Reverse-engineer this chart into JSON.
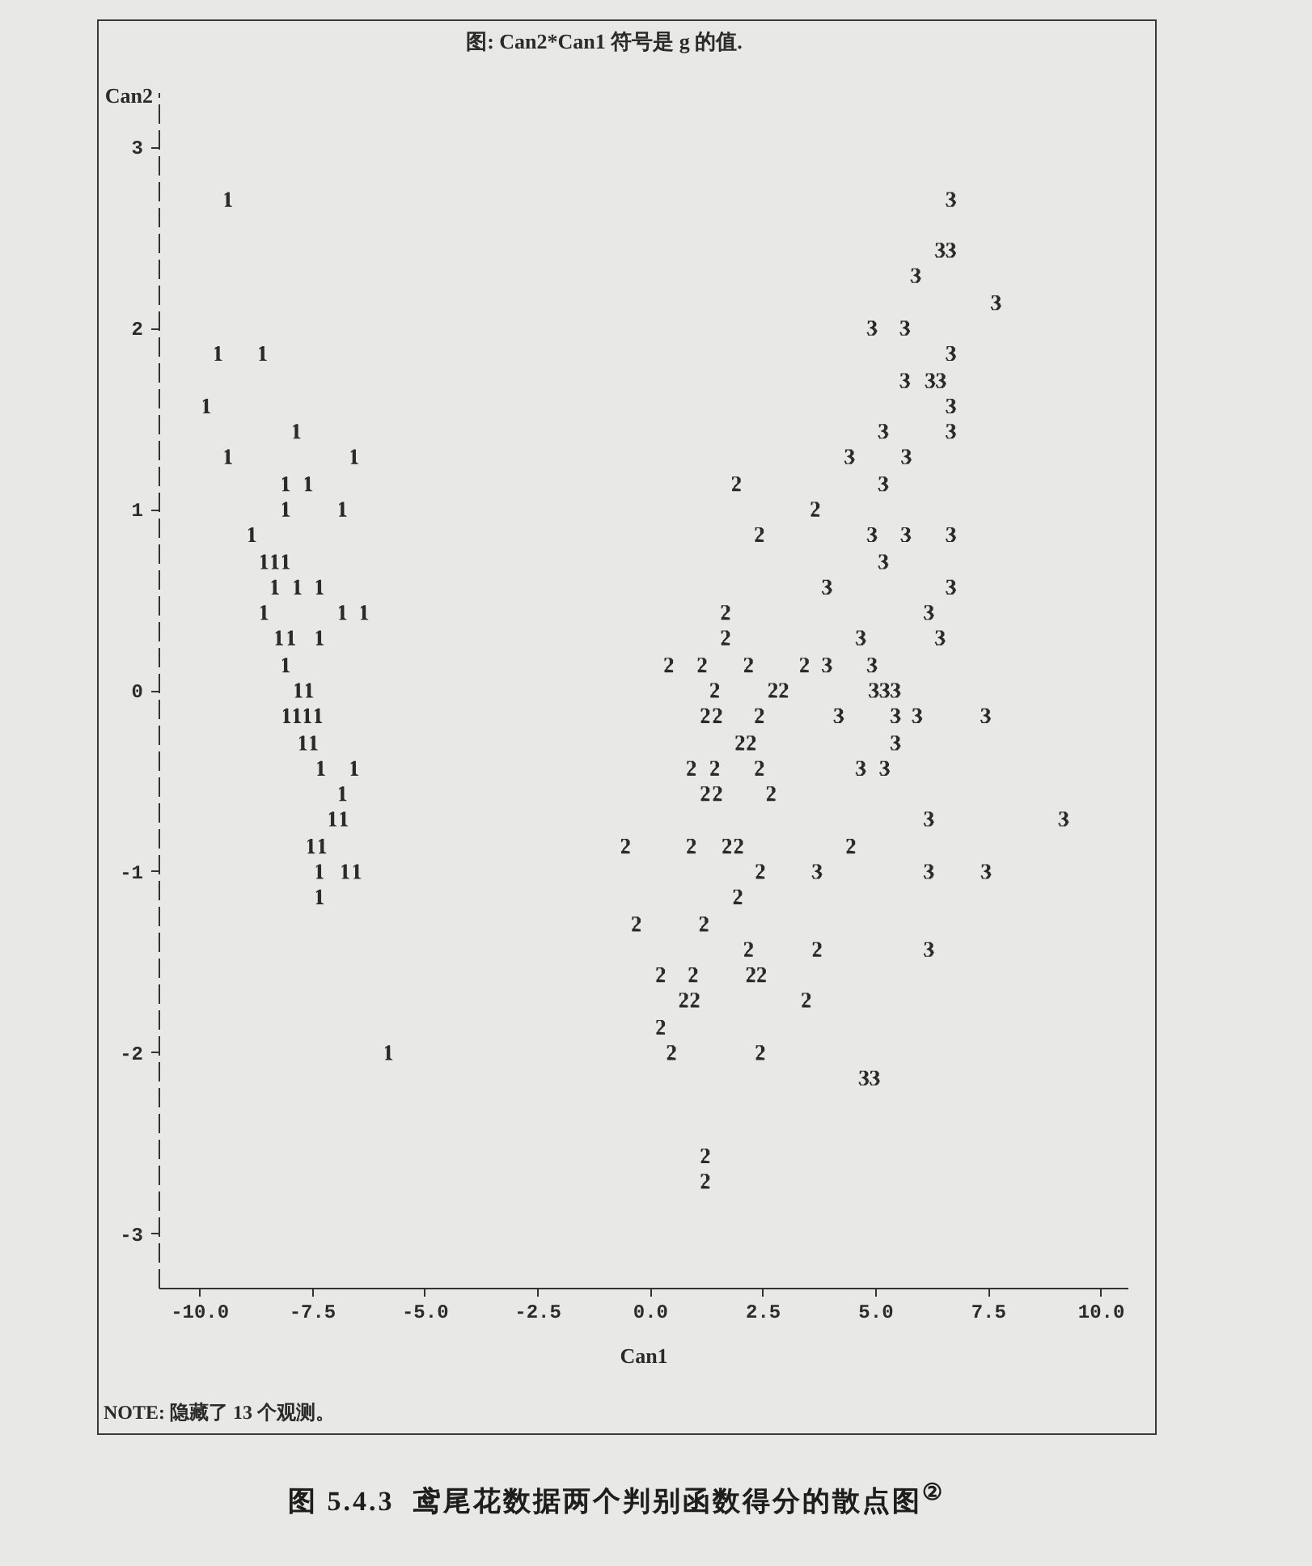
{
  "chart_data": {
    "type": "scatter",
    "title": "图: Can2*Can1  符号是 g 的值.",
    "xlabel": "Can1",
    "ylabel": "Can2",
    "xlim": [
      -10.9,
      10.6
    ],
    "xticks": [
      {
        "value": -10,
        "label": "-10.0"
      },
      -7.5,
      {
        "value": -5,
        "label": "-5.0"
      },
      -2.5,
      {
        "value": 0,
        "label": "0.0"
      },
      2.5,
      {
        "value": 5,
        "label": "5.0"
      },
      7.5,
      {
        "value": 10,
        "label": "10.0"
      }
    ],
    "ylim": [
      -3.3,
      3.3
    ],
    "yticks": [
      -3,
      -2,
      -1,
      0,
      1,
      2,
      3
    ],
    "annotations": [
      "NOTE: 隐藏了 13 个观测。",
      "图 5.4.3  鸢尾花数据两个判别函数得分的散点图$^{②}$"
    ],
    "series": [
      {
        "name": "1",
        "color": "#2b2b2b",
        "x": [
          -9.36,
          -9.58,
          -8.59,
          -9.84,
          -7.84,
          -9.36,
          -6.56,
          -8.08,
          -7.58,
          -8.08,
          -6.82,
          -8.83,
          -8.56,
          -8.32,
          -8.08,
          -8.32,
          -7.82,
          -7.33,
          -8.56,
          -6.82,
          -6.34,
          -8.23,
          -7.96,
          -7.33,
          -8.08,
          -7.8,
          -7.56,
          -8.06,
          -7.83,
          -7.6,
          -7.36,
          -7.7,
          -7.46,
          -7.3,
          -6.56,
          -6.82,
          -7.04,
          -6.79,
          -7.52,
          -7.27,
          -7.33,
          -6.76,
          -6.5,
          -7.33,
          -5.8
        ],
        "values": [
          2.71,
          1.86,
          1.86,
          1.57,
          1.43,
          1.29,
          1.29,
          1.14,
          1.14,
          1.0,
          1.0,
          0.86,
          0.71,
          0.71,
          0.71,
          0.57,
          0.57,
          0.57,
          0.43,
          0.43,
          0.43,
          0.29,
          0.29,
          0.29,
          0.14,
          0,
          0,
          -0.14,
          -0.14,
          -0.14,
          -0.14,
          -0.29,
          -0.29,
          -0.43,
          -0.43,
          -0.57,
          -0.71,
          -0.71,
          -0.86,
          -0.86,
          -1.0,
          -1.0,
          -1.0,
          -1.14,
          -2.0
        ]
      },
      {
        "name": "2",
        "color": "#2b2b2b",
        "x": [
          1.92,
          3.67,
          2.43,
          1.68,
          1.68,
          0.42,
          1.16,
          2.19,
          3.43,
          1.44,
          2.73,
          2.97,
          1.23,
          1.5,
          2.43,
          2.0,
          2.25,
          0.92,
          1.44,
          2.43,
          1.23,
          1.5,
          2.69,
          -0.54,
          0.92,
          1.71,
          1.97,
          4.46,
          2.45,
          1.95,
          -0.3,
          1.2,
          2.19,
          3.71,
          0.24,
          0.96,
          2.24,
          2.48,
          0.75,
          1.0,
          3.47,
          0.24,
          0.48,
          2.45,
          1.23,
          1.23
        ],
        "values": [
          1.14,
          1.0,
          0.86,
          0.43,
          0.29,
          0.14,
          0.14,
          0.14,
          0.14,
          0,
          0,
          0,
          -0.14,
          -0.14,
          -0.14,
          -0.29,
          -0.29,
          -0.43,
          -0.43,
          -0.43,
          -0.57,
          -0.57,
          -0.57,
          -0.86,
          -0.86,
          -0.86,
          -0.86,
          -0.86,
          -1.0,
          -1.14,
          -1.29,
          -1.29,
          -1.43,
          -1.43,
          -1.57,
          -1.57,
          -1.57,
          -1.57,
          -1.71,
          -1.71,
          -1.71,
          -1.86,
          -2.0,
          -2.0,
          -2.57,
          -2.71
        ]
      },
      {
        "name": "3",
        "color": "#2b2b2b",
        "x": [
          6.68,
          6.44,
          6.68,
          5.9,
          7.68,
          4.93,
          5.66,
          6.68,
          5.66,
          6.22,
          6.46,
          6.68,
          5.18,
          6.68,
          4.43,
          5.69,
          5.18,
          4.93,
          5.68,
          6.68,
          5.18,
          3.93,
          6.68,
          6.19,
          4.68,
          6.44,
          3.93,
          4.93,
          4.97,
          5.21,
          5.45,
          4.19,
          5.45,
          5.93,
          7.45,
          5.45,
          4.68,
          5.21,
          6.19,
          9.18,
          3.71,
          6.19,
          7.46,
          6.19,
          4.75,
          4.99
        ],
        "values": [
          2.71,
          2.43,
          2.43,
          2.29,
          2.14,
          2.0,
          2.0,
          1.86,
          1.71,
          1.71,
          1.71,
          1.57,
          1.43,
          1.43,
          1.29,
          1.29,
          1.14,
          0.86,
          0.86,
          0.86,
          0.71,
          0.57,
          0.57,
          0.43,
          0.29,
          0.29,
          0.14,
          0.14,
          0,
          0,
          0,
          -0.14,
          -0.14,
          -0.14,
          -0.14,
          -0.29,
          -0.43,
          -0.43,
          -0.71,
          -0.71,
          -1.0,
          -1.0,
          -1.0,
          -1.43,
          -2.14,
          -2.14
        ]
      }
    ]
  }
}
